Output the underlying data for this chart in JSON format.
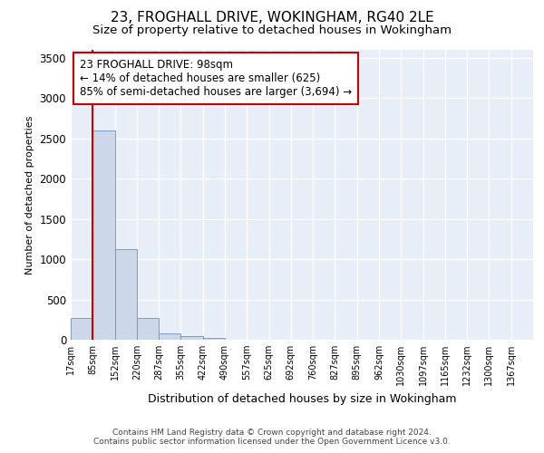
{
  "title": "23, FROGHALL DRIVE, WOKINGHAM, RG40 2LE",
  "subtitle": "Size of property relative to detached houses in Wokingham",
  "xlabel": "Distribution of detached houses by size in Wokingham",
  "ylabel": "Number of detached properties",
  "bar_labels": [
    "17sqm",
    "85sqm",
    "152sqm",
    "220sqm",
    "287sqm",
    "355sqm",
    "422sqm",
    "490sqm",
    "557sqm",
    "625sqm",
    "692sqm",
    "760sqm",
    "827sqm",
    "895sqm",
    "962sqm",
    "1030sqm",
    "1097sqm",
    "1165sqm",
    "1232sqm",
    "1300sqm",
    "1367sqm"
  ],
  "bar_heights": [
    270,
    2600,
    1130,
    275,
    80,
    40,
    20,
    3,
    0,
    0,
    0,
    0,
    0,
    0,
    0,
    0,
    0,
    0,
    0,
    0,
    0
  ],
  "bar_color": "#ccd8ea",
  "bar_edge_color": "#7090b8",
  "ylim": [
    0,
    3600
  ],
  "yticks": [
    0,
    500,
    1000,
    1500,
    2000,
    2500,
    3000,
    3500
  ],
  "red_line_x": 0.575,
  "red_line_color": "#cc0000",
  "annotation_text": "23 FROGHALL DRIVE: 98sqm\n← 14% of detached houses are smaller (625)\n85% of semi-detached houses are larger (3,694) →",
  "annotation_box_color": "#ffffff",
  "annotation_box_edge_color": "#cc0000",
  "footer_line1": "Contains HM Land Registry data © Crown copyright and database right 2024.",
  "footer_line2": "Contains public sector information licensed under the Open Government Licence v3.0.",
  "bg_color": "#e8eef8",
  "grid_color": "#ffffff",
  "title_fontsize": 11,
  "subtitle_fontsize": 9.5,
  "annotation_fontsize": 8.5,
  "ylabel_fontsize": 8,
  "xlabel_fontsize": 9,
  "footer_fontsize": 6.5
}
